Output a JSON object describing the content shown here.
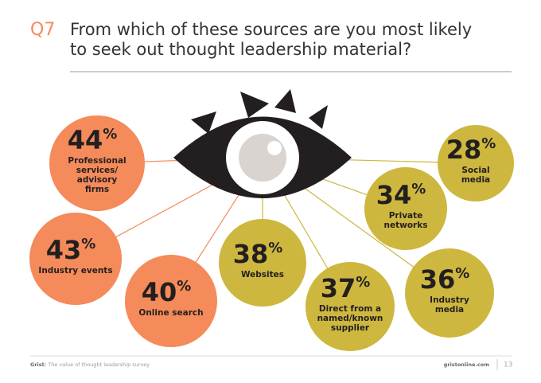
{
  "header": {
    "question": "Q7",
    "title_lines": [
      "From which of these sources are you most likely",
      "to seek out thought leadership material?"
    ]
  },
  "items": [
    {
      "value": 44,
      "unit": "%",
      "label_lines": [
        "Professional",
        "services/",
        "advisory",
        "firms"
      ],
      "color": "#f58a5a"
    },
    {
      "value": 43,
      "unit": "%",
      "label_lines": [
        "Industry events"
      ],
      "color": "#f58a5a"
    },
    {
      "value": 40,
      "unit": "%",
      "label_lines": [
        "Online search"
      ],
      "color": "#f58a5a"
    },
    {
      "value": 38,
      "unit": "%",
      "label_lines": [
        "Websites"
      ],
      "color": "#cdb73e"
    },
    {
      "value": 37,
      "unit": "%",
      "label_lines": [
        "Direct from a",
        "named/known",
        "supplier"
      ],
      "color": "#cdb73e"
    },
    {
      "value": 36,
      "unit": "%",
      "label_lines": [
        "Industry",
        "media"
      ],
      "color": "#cdb73e"
    },
    {
      "value": 34,
      "unit": "%",
      "label_lines": [
        "Private",
        "networks"
      ],
      "color": "#cdb73e"
    },
    {
      "value": 28,
      "unit": "%",
      "label_lines": [
        "Social",
        "media"
      ],
      "color": "#cdb73e"
    }
  ],
  "footer": {
    "brand": "Grist",
    "subtitle": "/ The value of thought leadership survey",
    "site": "gristonline.com",
    "page": "13"
  }
}
